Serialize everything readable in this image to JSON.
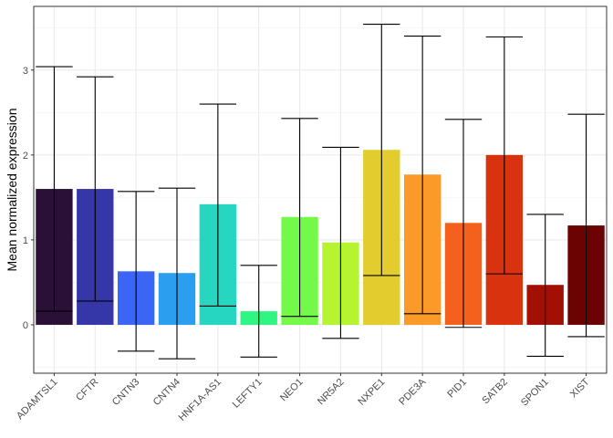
{
  "chart_data": {
    "type": "bar",
    "title": "",
    "xlabel": "",
    "ylabel": "Mean normalized expression",
    "ylim": [
      -0.57,
      3.75
    ],
    "yticks": [
      0,
      1,
      2,
      3
    ],
    "grid": true,
    "categories": [
      "ADAMTSL1",
      "CFTR",
      "CNTN3",
      "CNTN4",
      "HNF1A-AS1",
      "LEFTY1",
      "NEO1",
      "NR5A2",
      "NXPE1",
      "PDE3A",
      "PID1",
      "SATB2",
      "SPON1",
      "XIST"
    ],
    "values": [
      1.6,
      1.6,
      0.63,
      0.61,
      1.42,
      0.16,
      1.27,
      0.97,
      2.06,
      1.77,
      1.2,
      2.0,
      0.47,
      1.17
    ],
    "error_low": [
      0.16,
      0.28,
      -0.31,
      -0.4,
      0.22,
      -0.38,
      0.1,
      -0.16,
      0.58,
      0.13,
      -0.03,
      0.6,
      -0.37,
      -0.14
    ],
    "error_high": [
      3.04,
      2.92,
      1.57,
      1.61,
      2.6,
      0.7,
      2.43,
      2.09,
      3.54,
      3.4,
      2.42,
      3.39,
      1.3,
      2.48
    ],
    "colors": [
      "#2a1036",
      "#3537a9",
      "#3a65f5",
      "#2c9ef0",
      "#27d6c0",
      "#2ff583",
      "#74f94a",
      "#b6f431",
      "#e3cc2e",
      "#fb9a29",
      "#f4611d",
      "#d9320e",
      "#a20f03",
      "#6b0303"
    ]
  }
}
